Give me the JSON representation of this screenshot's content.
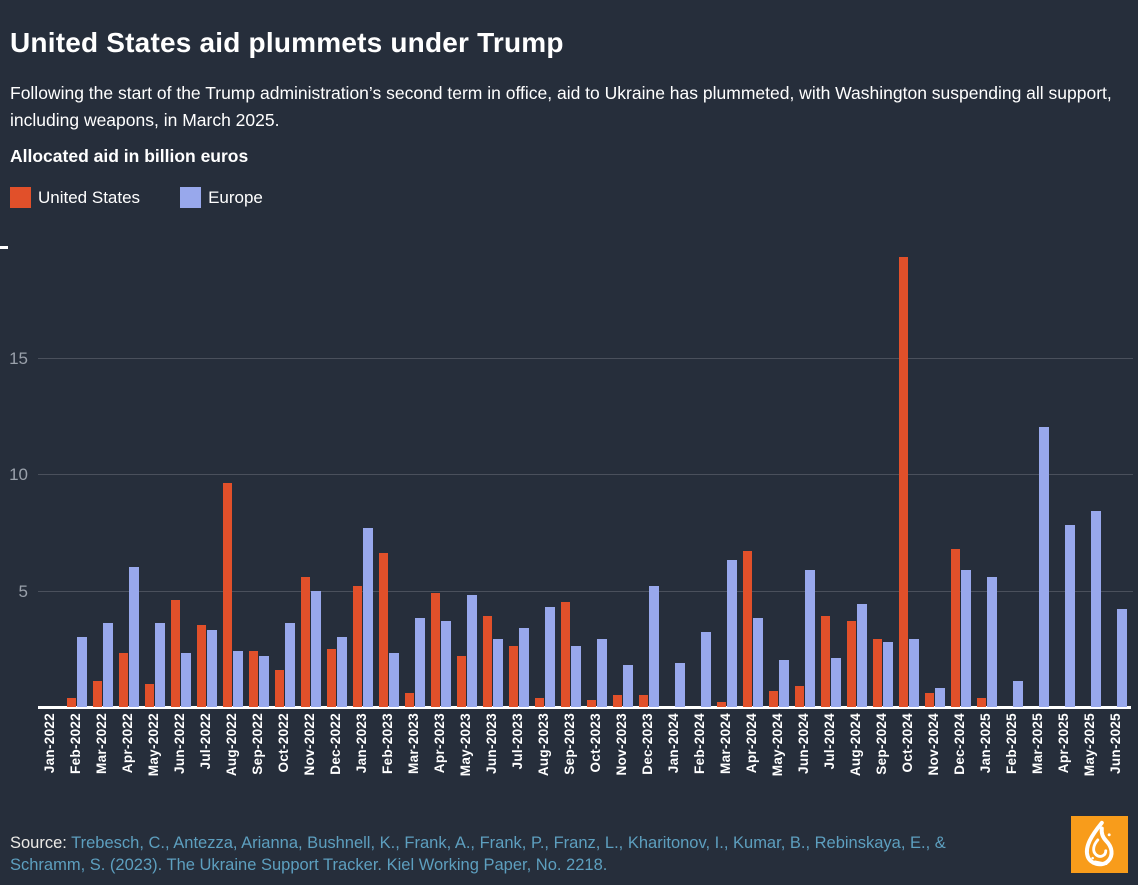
{
  "page": {
    "title": "United States aid plummets under Trump",
    "subtitle": "Following the start of the Trump administration’s second term in office, aid to Ukraine has plummeted, with Washington suspending all support, including weapons, in March 2025.",
    "background_color": "#262e3b"
  },
  "chart": {
    "heading": "Allocated aid in billion euros"
  },
  "chart_data": {
    "type": "bar",
    "title": "Allocated aid in billion euros",
    "categories": [
      "Jan-2022",
      "Feb-2022",
      "Mar-2022",
      "Apr-2022",
      "May-2022",
      "Jun-2022",
      "Jul-2022",
      "Aug-2022",
      "Sep-2022",
      "Oct-2022",
      "Nov-2022",
      "Dec-2022",
      "Jan-2023",
      "Feb-2023",
      "Mar-2023",
      "Apr-2023",
      "May-2023",
      "Jun-2023",
      "Jul-2023",
      "Aug-2023",
      "Sep-2023",
      "Oct-2023",
      "Nov-2023",
      "Dec-2023",
      "Jan-2024",
      "Feb-2024",
      "Mar-2024",
      "Apr-2024",
      "May-2024",
      "Jun-2024",
      "Jul-2024",
      "Aug-2024",
      "Sep-2024",
      "Oct-2024",
      "Nov-2024",
      "Dec-2024",
      "Jan-2025",
      "Feb-2025",
      "Mar-2025",
      "Apr-2025",
      "May-2025",
      "Jun-2025"
    ],
    "series": [
      {
        "name": "United States",
        "color": "#e1502a",
        "values": [
          0,
          0.4,
          1.1,
          2.3,
          1.0,
          4.6,
          3.5,
          9.6,
          2.4,
          1.6,
          5.6,
          2.5,
          5.2,
          6.6,
          0.6,
          4.9,
          2.2,
          3.9,
          2.6,
          0.4,
          4.5,
          0.3,
          0.5,
          0.5,
          0,
          0,
          0.2,
          6.7,
          0.7,
          0.9,
          3.9,
          3.7,
          2.9,
          19.3,
          0.6,
          6.8,
          0.4,
          0,
          0,
          0,
          0,
          0
        ]
      },
      {
        "name": "Europe",
        "color": "#98a8ec",
        "values": [
          0,
          3.0,
          3.6,
          6.0,
          3.6,
          2.3,
          3.3,
          2.4,
          2.2,
          3.6,
          5.0,
          3.0,
          7.7,
          2.3,
          3.8,
          3.7,
          4.8,
          2.9,
          3.4,
          4.3,
          2.6,
          2.9,
          1.8,
          5.2,
          1.9,
          3.2,
          6.3,
          3.8,
          2.0,
          5.9,
          2.1,
          4.4,
          2.8,
          2.9,
          0.8,
          5.9,
          5.6,
          1.1,
          12.0,
          7.8,
          8.4,
          4.2
        ]
      }
    ],
    "xlabel": "",
    "ylabel": "",
    "ylim": [
      0,
      20
    ],
    "yticks": [
      5,
      10,
      15
    ],
    "grid": true,
    "legend_position": "top-left"
  },
  "footer": {
    "source_label": "Source:",
    "source_text": "Trebesch, C., Antezza, Arianna, Bushnell, K., Frank, A., Frank, P., Franz, L., Kharitonov, I., Kumar, B., Rebinskaya, E., & Schramm, S. (2023). The Ukraine Support Tracker. Kiel Working Paper, No. 2218.",
    "logo_name": "al-jazeera-logo",
    "logo_color": "#f89c1b",
    "logo_glyph_color": "#ffffff"
  }
}
